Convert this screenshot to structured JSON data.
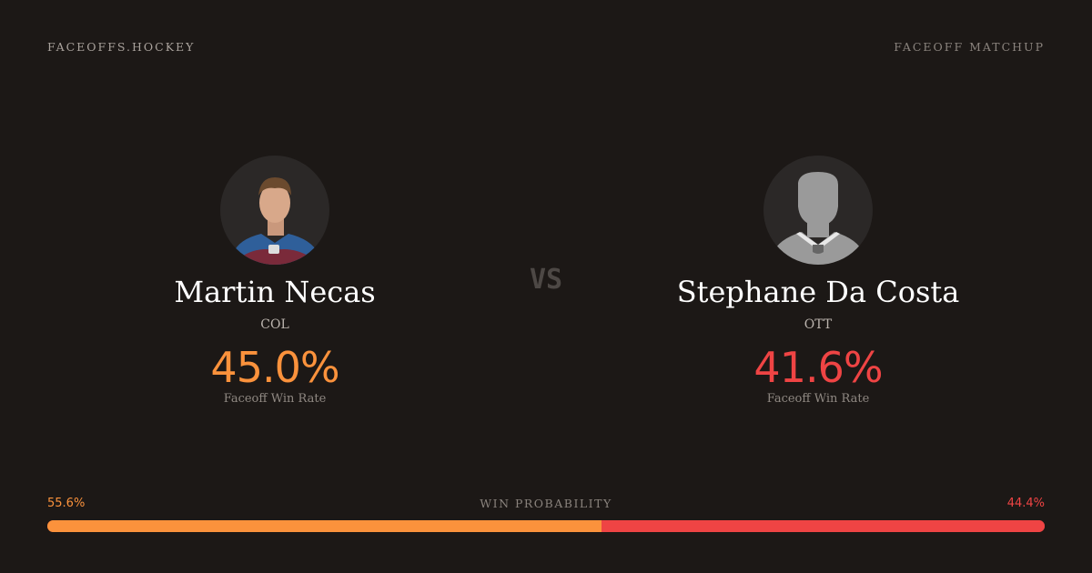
{
  "header": {
    "brand": "FACEOFFS.HOCKEY",
    "page_type": "FACEOFF MATCHUP"
  },
  "vs": "VS",
  "players": [
    {
      "name": "Martin Necas",
      "team": "COL",
      "win_rate": "45.0%",
      "win_rate_label": "Faceoff Win Rate",
      "color": "#fb923c",
      "avatar": "player-headshot"
    },
    {
      "name": "Stephane Da Costa",
      "team": "OTT",
      "win_rate": "41.6%",
      "win_rate_label": "Faceoff Win Rate",
      "color": "#ef4444",
      "avatar": "silhouette-placeholder"
    }
  ],
  "win_probability": {
    "label": "WIN PROBABILITY",
    "left": "55.6%",
    "right": "44.4%",
    "left_value": 55.6,
    "right_value": 44.4
  }
}
